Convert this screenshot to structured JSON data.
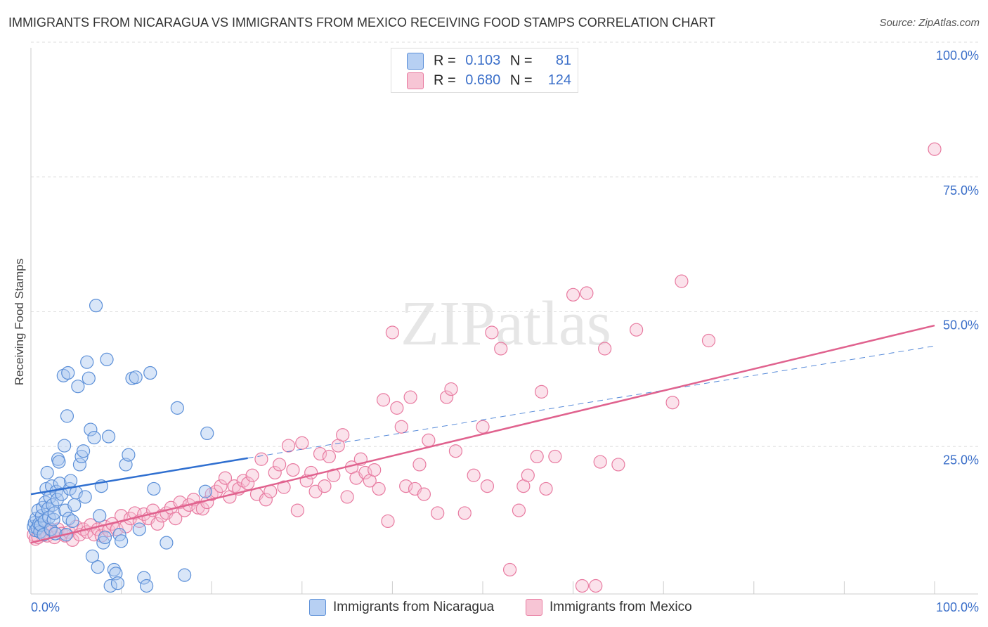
{
  "title": "IMMIGRANTS FROM NICARAGUA VS IMMIGRANTS FROM MEXICO RECEIVING FOOD STAMPS CORRELATION CHART",
  "source": "Source: ZipAtlas.com",
  "watermark": "ZIPatlas",
  "legend": {
    "r_label": "R =",
    "n_label": "N =",
    "nicaragua": {
      "r": "0.103",
      "n": "81"
    },
    "mexico": {
      "r": "0.680",
      "n": "124"
    }
  },
  "chart_data": {
    "type": "scatter",
    "title": "IMMIGRANTS FROM NICARAGUA VS IMMIGRANTS FROM MEXICO RECEIVING FOOD STAMPS CORRELATION CHART",
    "xlabel": "",
    "ylabel": "Receiving Food Stamps",
    "xlim": [
      0,
      100
    ],
    "ylim": [
      0,
      100
    ],
    "x_tick_labels": [
      "0.0%",
      "100.0%"
    ],
    "y_tick_labels": [
      "100.0%",
      "75.0%",
      "50.0%",
      "25.0%"
    ],
    "y_ticks": [
      100,
      75,
      50,
      25
    ],
    "grid": true,
    "legend_position": "top-center",
    "colors": {
      "nicaragua": "#5b8fd8",
      "mexico": "#e87aa0",
      "nicaragua_line": "#2f6fd0",
      "mexico_line": "#e0628e"
    },
    "series": [
      {
        "name": "Immigrants from Nicaragua",
        "trend": {
          "x0": 0,
          "y0": 18.5,
          "x1": 24,
          "y1": 25.2,
          "dashed_to_x": 100,
          "dashed_to_y": 46
        },
        "points": [
          [
            0.3,
            12.5
          ],
          [
            0.4,
            13.2
          ],
          [
            0.5,
            11.8
          ],
          [
            0.6,
            14.0
          ],
          [
            0.7,
            12.2
          ],
          [
            0.8,
            15.5
          ],
          [
            0.9,
            13.0
          ],
          [
            1.0,
            11.5
          ],
          [
            1.1,
            12.8
          ],
          [
            1.2,
            14.5
          ],
          [
            1.3,
            16.0
          ],
          [
            1.4,
            11.0
          ],
          [
            1.5,
            13.5
          ],
          [
            1.6,
            17.0
          ],
          [
            1.7,
            19.5
          ],
          [
            1.8,
            22.5
          ],
          [
            1.9,
            15.8
          ],
          [
            2.0,
            14.2
          ],
          [
            2.1,
            18.0
          ],
          [
            2.2,
            12.0
          ],
          [
            2.3,
            20.0
          ],
          [
            2.4,
            16.5
          ],
          [
            2.5,
            13.8
          ],
          [
            2.6,
            15.0
          ],
          [
            2.7,
            11.2
          ],
          [
            2.8,
            19.0
          ],
          [
            2.9,
            17.5
          ],
          [
            3.0,
            25.0
          ],
          [
            3.1,
            24.5
          ],
          [
            3.2,
            20.5
          ],
          [
            3.4,
            18.5
          ],
          [
            3.6,
            40.5
          ],
          [
            3.7,
            27.5
          ],
          [
            3.8,
            15.5
          ],
          [
            3.9,
            11.0
          ],
          [
            4.0,
            33.0
          ],
          [
            4.1,
            41.0
          ],
          [
            4.2,
            14.0
          ],
          [
            4.3,
            19.5
          ],
          [
            4.4,
            21.0
          ],
          [
            4.6,
            13.5
          ],
          [
            4.8,
            16.5
          ],
          [
            5.0,
            18.8
          ],
          [
            5.2,
            38.5
          ],
          [
            5.4,
            24.0
          ],
          [
            5.6,
            25.5
          ],
          [
            5.8,
            26.5
          ],
          [
            6.0,
            18.0
          ],
          [
            6.2,
            43.0
          ],
          [
            6.4,
            40.0
          ],
          [
            6.6,
            30.5
          ],
          [
            6.8,
            7.0
          ],
          [
            7.0,
            29.0
          ],
          [
            7.2,
            53.5
          ],
          [
            7.4,
            5.0
          ],
          [
            7.6,
            14.5
          ],
          [
            7.8,
            20.0
          ],
          [
            8.0,
            9.5
          ],
          [
            8.2,
            10.5
          ],
          [
            8.4,
            43.5
          ],
          [
            8.6,
            29.2
          ],
          [
            8.8,
            1.5
          ],
          [
            9.2,
            4.5
          ],
          [
            9.4,
            3.8
          ],
          [
            9.6,
            2.0
          ],
          [
            9.8,
            11.0
          ],
          [
            10.0,
            9.8
          ],
          [
            10.5,
            24.0
          ],
          [
            10.8,
            25.8
          ],
          [
            11.2,
            40.0
          ],
          [
            11.6,
            40.2
          ],
          [
            12.0,
            12.0
          ],
          [
            12.5,
            3.0
          ],
          [
            12.8,
            1.5
          ],
          [
            13.2,
            41.0
          ],
          [
            13.6,
            19.5
          ],
          [
            15.0,
            9.5
          ],
          [
            16.2,
            34.5
          ],
          [
            17.0,
            3.5
          ],
          [
            19.5,
            29.8
          ],
          [
            19.3,
            19.0
          ]
        ]
      },
      {
        "name": "Immigrants from Mexico",
        "trend": {
          "x0": 0,
          "y0": 9.5,
          "x1": 100,
          "y1": 49.8
        },
        "points": [
          [
            0.3,
            11.0
          ],
          [
            0.5,
            10.2
          ],
          [
            0.8,
            10.5
          ],
          [
            1.2,
            11.5
          ],
          [
            1.5,
            12.5
          ],
          [
            1.8,
            10.8
          ],
          [
            2.2,
            11.8
          ],
          [
            2.6,
            10.5
          ],
          [
            3.0,
            12.0
          ],
          [
            3.4,
            11.2
          ],
          [
            3.8,
            10.8
          ],
          [
            4.2,
            11.5
          ],
          [
            4.6,
            10.0
          ],
          [
            5.0,
            12.5
          ],
          [
            5.4,
            11.0
          ],
          [
            5.8,
            12.0
          ],
          [
            6.2,
            11.5
          ],
          [
            6.6,
            12.8
          ],
          [
            7.0,
            11.0
          ],
          [
            7.4,
            12.0
          ],
          [
            7.8,
            10.8
          ],
          [
            8.2,
            12.5
          ],
          [
            8.6,
            11.8
          ],
          [
            9.0,
            13.0
          ],
          [
            9.5,
            12.0
          ],
          [
            10.0,
            14.5
          ],
          [
            10.5,
            12.5
          ],
          [
            11.0,
            14.0
          ],
          [
            11.5,
            15.0
          ],
          [
            12.0,
            13.5
          ],
          [
            12.5,
            14.8
          ],
          [
            13.0,
            14.0
          ],
          [
            13.5,
            15.5
          ],
          [
            14.0,
            13.0
          ],
          [
            14.5,
            14.5
          ],
          [
            15.0,
            15.0
          ],
          [
            15.5,
            16.0
          ],
          [
            16.0,
            14.0
          ],
          [
            16.5,
            17.0
          ],
          [
            17.0,
            15.5
          ],
          [
            17.5,
            16.5
          ],
          [
            18.0,
            17.5
          ],
          [
            18.5,
            16.0
          ],
          [
            19.0,
            15.8
          ],
          [
            19.5,
            17.0
          ],
          [
            20.0,
            18.5
          ],
          [
            20.5,
            19.0
          ],
          [
            21.0,
            20.0
          ],
          [
            21.5,
            21.5
          ],
          [
            22.0,
            18.0
          ],
          [
            22.5,
            20.0
          ],
          [
            23.0,
            19.5
          ],
          [
            23.5,
            21.0
          ],
          [
            24.0,
            20.5
          ],
          [
            24.5,
            22.0
          ],
          [
            25.0,
            18.5
          ],
          [
            25.5,
            25.0
          ],
          [
            26.0,
            17.5
          ],
          [
            26.5,
            19.0
          ],
          [
            27.0,
            22.5
          ],
          [
            27.5,
            24.0
          ],
          [
            28.0,
            19.8
          ],
          [
            28.5,
            27.5
          ],
          [
            29.0,
            23.0
          ],
          [
            29.5,
            15.5
          ],
          [
            30.0,
            28.0
          ],
          [
            30.5,
            21.0
          ],
          [
            31.0,
            22.5
          ],
          [
            31.5,
            19.0
          ],
          [
            32.0,
            26.0
          ],
          [
            32.5,
            20.0
          ],
          [
            33.0,
            25.5
          ],
          [
            33.5,
            22.0
          ],
          [
            34.0,
            27.5
          ],
          [
            34.5,
            29.5
          ],
          [
            35.0,
            18.0
          ],
          [
            35.5,
            23.5
          ],
          [
            36.0,
            21.5
          ],
          [
            36.5,
            25.0
          ],
          [
            37.0,
            22.5
          ],
          [
            37.5,
            21.0
          ],
          [
            38.0,
            23.0
          ],
          [
            38.5,
            19.5
          ],
          [
            39.0,
            36.0
          ],
          [
            39.5,
            13.5
          ],
          [
            40.0,
            48.5
          ],
          [
            40.5,
            34.5
          ],
          [
            41.0,
            31.0
          ],
          [
            41.5,
            20.0
          ],
          [
            42.0,
            36.5
          ],
          [
            42.5,
            19.5
          ],
          [
            43.0,
            24.0
          ],
          [
            43.5,
            18.5
          ],
          [
            44.0,
            28.5
          ],
          [
            45.0,
            15.0
          ],
          [
            46.0,
            36.5
          ],
          [
            46.5,
            38.0
          ],
          [
            47.0,
            26.5
          ],
          [
            48.0,
            15.0
          ],
          [
            49.0,
            22.0
          ],
          [
            50.0,
            31.0
          ],
          [
            50.5,
            20.0
          ],
          [
            51.0,
            48.5
          ],
          [
            52.0,
            45.5
          ],
          [
            53.0,
            4.5
          ],
          [
            54.0,
            15.5
          ],
          [
            54.5,
            20.0
          ],
          [
            55.0,
            22.0
          ],
          [
            56.0,
            25.5
          ],
          [
            56.5,
            37.5
          ],
          [
            57.0,
            19.5
          ],
          [
            58.0,
            25.5
          ],
          [
            60.0,
            55.5
          ],
          [
            61.0,
            1.5
          ],
          [
            61.5,
            55.8
          ],
          [
            62.5,
            1.5
          ],
          [
            63.0,
            24.5
          ],
          [
            63.5,
            45.5
          ],
          [
            65.0,
            24.0
          ],
          [
            67.0,
            49.0
          ],
          [
            71.0,
            35.5
          ],
          [
            72.0,
            58.0
          ],
          [
            75.0,
            47.0
          ],
          [
            100.0,
            82.5
          ]
        ]
      }
    ]
  },
  "bottom_legend": {
    "nicaragua": "Immigrants from Nicaragua",
    "mexico": "Immigrants from Mexico"
  }
}
